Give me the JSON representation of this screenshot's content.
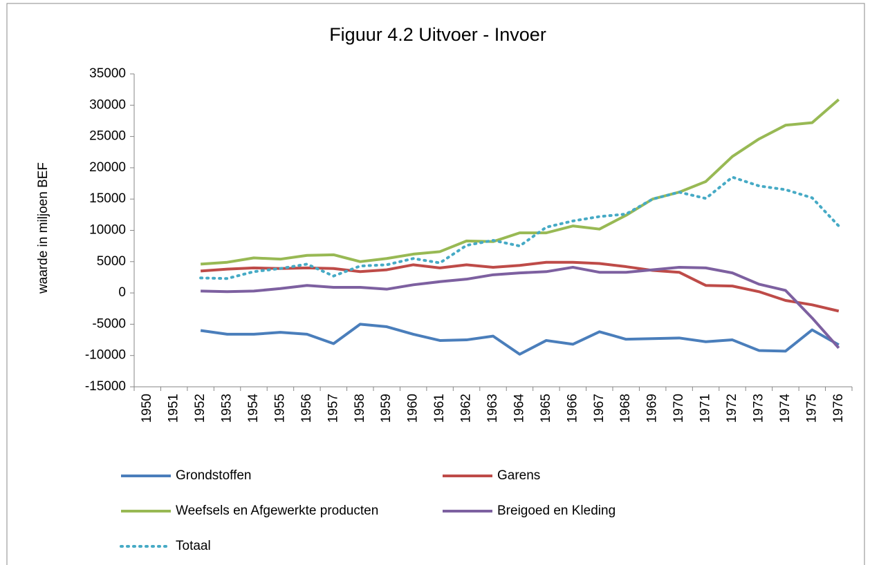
{
  "chart_data": {
    "type": "line",
    "title": "Figuur 4.2 Uitvoer - Invoer",
    "y_label": "waarde in miljoen BEF",
    "categories": [
      "1950",
      "1951",
      "1952",
      "1953",
      "1954",
      "1955",
      "1956",
      "1957",
      "1958",
      "1959",
      "1960",
      "1961",
      "1962",
      "1963",
      "1964",
      "1965",
      "1966",
      "1967",
      "1968",
      "1969",
      "1970",
      "1971",
      "1972",
      "1973",
      "1974",
      "1975",
      "1976"
    ],
    "ylim": [
      -15000,
      35000
    ],
    "yticks": [
      -15000,
      -10000,
      -5000,
      0,
      5000,
      10000,
      15000,
      20000,
      25000,
      30000,
      35000
    ],
    "grid": false,
    "legend": "bottom",
    "series": [
      {
        "name": "Grondstoffen",
        "color": "#4a7ebb",
        "style": "solid",
        "values": [
          null,
          null,
          -6000,
          -6600,
          -6600,
          -6300,
          -6600,
          -8100,
          -5000,
          -5400,
          -6600,
          -7600,
          -7500,
          -6900,
          -9800,
          -7600,
          -8200,
          -6200,
          -7400,
          -7300,
          -7200,
          -7800,
          -7500,
          -9200,
          -9300,
          -5900,
          -8300
        ]
      },
      {
        "name": "Garens",
        "color": "#be4b48",
        "style": "solid",
        "values": [
          null,
          null,
          3500,
          3800,
          4000,
          3900,
          4000,
          3900,
          3400,
          3700,
          4500,
          4000,
          4500,
          4100,
          4400,
          4900,
          4900,
          4700,
          4200,
          3600,
          3300,
          1200,
          1100,
          200,
          -1200,
          -1900,
          -2900
        ]
      },
      {
        "name": "Weefsels en Afgewerkte producten",
        "color": "#98b954",
        "style": "solid",
        "values": [
          null,
          null,
          4600,
          4900,
          5600,
          5400,
          6000,
          6100,
          5000,
          5500,
          6200,
          6600,
          8300,
          8200,
          9600,
          9600,
          10700,
          10200,
          12400,
          15000,
          16100,
          17800,
          21800,
          24600,
          26800,
          27200,
          30900
        ]
      },
      {
        "name": "Breigoed en Kleding",
        "color": "#7d60a0",
        "style": "solid",
        "values": [
          null,
          null,
          300,
          200,
          300,
          700,
          1200,
          900,
          900,
          600,
          1300,
          1800,
          2200,
          2900,
          3200,
          3400,
          4100,
          3300,
          3300,
          3700,
          4100,
          4000,
          3200,
          1400,
          400,
          -4000,
          -8800
        ]
      },
      {
        "name": "Totaal",
        "color": "#46aac5",
        "style": "dotted",
        "values": [
          null,
          null,
          2400,
          2300,
          3400,
          3900,
          4600,
          2700,
          4300,
          4500,
          5500,
          4800,
          7600,
          8400,
          7500,
          10500,
          11500,
          12200,
          12600,
          15000,
          16100,
          15100,
          18500,
          17100,
          16500,
          15200,
          10700
        ]
      }
    ]
  }
}
